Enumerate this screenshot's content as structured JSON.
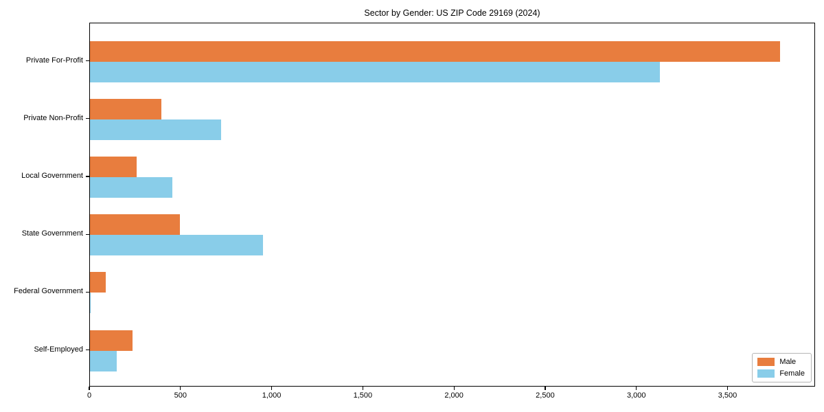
{
  "chart_data": {
    "type": "bar",
    "orientation": "horizontal",
    "title": "Sector by Gender: US ZIP Code 29169 (2024)",
    "categories": [
      "Private For-Profit",
      "Private Non-Profit",
      "Local Government",
      "State Government",
      "Federal Government",
      "Self-Employed"
    ],
    "series": [
      {
        "name": "Male",
        "color": "#e87d3e",
        "values": [
          3785,
          390,
          255,
          495,
          85,
          235
        ]
      },
      {
        "name": "Female",
        "color": "#89cde9",
        "values": [
          3125,
          720,
          450,
          950,
          5,
          145
        ]
      }
    ],
    "xlabel": "",
    "ylabel": "",
    "xlim": [
      0,
      3980
    ],
    "xticks": [
      0,
      500,
      1000,
      1500,
      2000,
      2500,
      3000,
      3500
    ],
    "xtick_labels": [
      "0",
      "500",
      "1,000",
      "1,500",
      "2,000",
      "2,500",
      "3,000",
      "3,500"
    ],
    "legend_position": "lower right",
    "grid": false,
    "background_color": "#ffffff",
    "frame_color": "#000000"
  }
}
